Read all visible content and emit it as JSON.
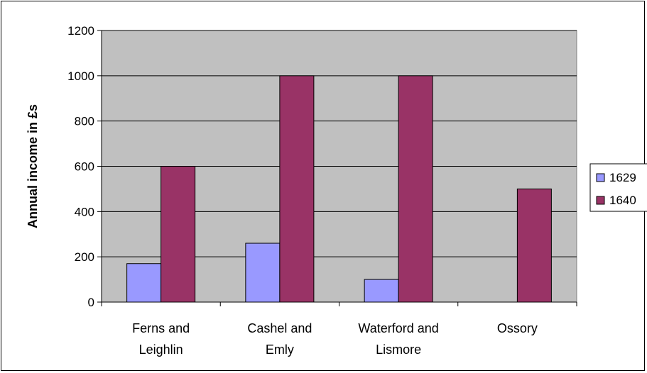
{
  "chart_data": {
    "type": "bar",
    "title": "",
    "xlabel": "",
    "ylabel": "Annual income in £s",
    "categories": [
      [
        "Ferns and",
        "Leighlin"
      ],
      [
        "Cashel and",
        "Emly"
      ],
      [
        "Waterford and",
        "Lismore"
      ],
      [
        "Ossory"
      ]
    ],
    "series": [
      {
        "name": "1629",
        "color": "#9999FF",
        "values": [
          170,
          260,
          100,
          null
        ]
      },
      {
        "name": "1640",
        "color": "#993366",
        "values": [
          600,
          1000,
          1000,
          500
        ]
      }
    ],
    "ylim": [
      0,
      1200
    ],
    "yticks": [
      0,
      200,
      400,
      600,
      800,
      1000,
      1200
    ],
    "grid": true,
    "plot_background": "#C0C0C0",
    "legend_position": "right"
  }
}
